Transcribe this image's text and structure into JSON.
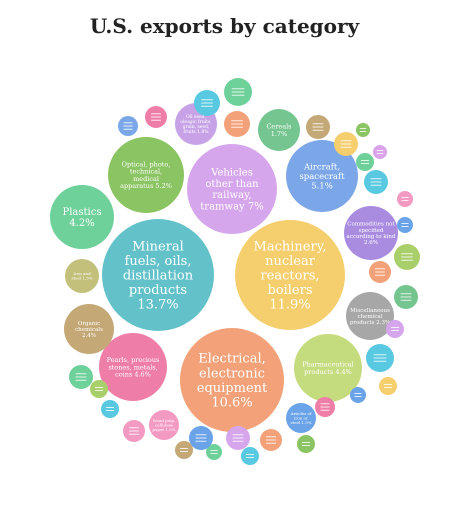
{
  "chart_data": {
    "type": "bubble",
    "title": "U.S. exports by category",
    "unit": "%",
    "bubbles": [
      {
        "id": "mineral",
        "label": [
          "Mineral",
          "fuels, oils,",
          "distillation",
          "products",
          "13.7%"
        ],
        "value": 13.7,
        "color": "#63c2c9"
      },
      {
        "id": "machinery",
        "label": [
          "Machinery,",
          "nuclear",
          "reactors,",
          "boilers",
          "11.9%"
        ],
        "value": 11.9,
        "color": "#f5ce6e"
      },
      {
        "id": "electrical",
        "label": [
          "Electrical,",
          "electronic",
          "equipment",
          "10.6%"
        ],
        "value": 10.6,
        "color": "#f3a178"
      },
      {
        "id": "vehicles",
        "label": [
          "Vehicles",
          "other than",
          "railway,",
          "tramway 7%"
        ],
        "value": 7.0,
        "color": "#d6a6ec"
      },
      {
        "id": "optical",
        "label": [
          "Optical, photo,",
          "technical,",
          "medical",
          "apparatus 5.2%"
        ],
        "value": 5.2,
        "color": "#8bc462"
      },
      {
        "id": "aircraft",
        "label": [
          "Aircraft,",
          "spacecraft",
          "5.1%"
        ],
        "value": 5.1,
        "color": "#7ba7e8"
      },
      {
        "id": "pearls",
        "label": [
          "Pearls, precious",
          "stones, metals,",
          "coins 4.6%"
        ],
        "value": 4.6,
        "color": "#ee7ea8"
      },
      {
        "id": "pharma",
        "label": [
          "Pharmaceutical",
          "products 4.4%"
        ],
        "value": 4.4,
        "color": "#c4db7e"
      },
      {
        "id": "plastics",
        "label": [
          "Plastics",
          "4.2%"
        ],
        "value": 4.2,
        "color": "#6ed19a"
      },
      {
        "id": "commodities",
        "label": [
          "Commodities not",
          "specified",
          "according to kind",
          "2.6%"
        ],
        "value": 2.6,
        "color": "#a98ce0"
      },
      {
        "id": "organic",
        "label": [
          "Organic",
          "chemicals",
          "2.4%"
        ],
        "value": 2.4,
        "color": "#c4a876"
      },
      {
        "id": "misc",
        "label": [
          "Miscellaneous",
          "chemical",
          "products 2.3%"
        ],
        "value": 2.3,
        "color": "#a7a7a7"
      },
      {
        "id": "oilseeds",
        "label": [
          "Oil seed,",
          "oleagic fruits,",
          "grain, seed,",
          "fruits 1.8%"
        ],
        "value": 1.8,
        "color": "#c7a2e6"
      },
      {
        "id": "cereals",
        "label": [
          "Cereals",
          "1.7%"
        ],
        "value": 1.7,
        "color": "#74c58f"
      },
      {
        "id": "articles_steel",
        "label": [
          "Articles of",
          "iron or",
          "steel 1.5%"
        ],
        "value": 1.5,
        "color": "#6aa3e8"
      },
      {
        "id": "iron_steel",
        "label": [
          "Iron and",
          "steel 1.5%"
        ],
        "value": 1.5,
        "color": "#c2c07a"
      },
      {
        "id": "wood",
        "label": [
          "Wood pulp,",
          "cellulose",
          "paper 1.5%"
        ],
        "value": 1.5,
        "color": "#f29ac2"
      },
      {
        "id": "small1",
        "label": [],
        "value": 1.3,
        "color": "#f3a178"
      },
      {
        "id": "small2",
        "label": [],
        "value": 1.2,
        "color": "#6ed19a"
      },
      {
        "id": "small3",
        "label": [],
        "value": 1.2,
        "color": "#58c9e0"
      },
      {
        "id": "small4",
        "label": [],
        "value": 1.1,
        "color": "#7ba7e8"
      },
      {
        "id": "small5",
        "label": [],
        "value": 1.1,
        "color": "#ee7ea8"
      },
      {
        "id": "small6",
        "label": [],
        "value": 1.0,
        "color": "#f5ce6e"
      },
      {
        "id": "small7",
        "label": [],
        "value": 1.0,
        "color": "#c4a876"
      },
      {
        "id": "small8",
        "label": [],
        "value": 1.0,
        "color": "#8bc462"
      },
      {
        "id": "small9",
        "label": [],
        "value": 0.9,
        "color": "#d9a4ea"
      },
      {
        "id": "small10",
        "label": [],
        "value": 0.9,
        "color": "#6ed19a"
      },
      {
        "id": "small11",
        "label": [],
        "value": 0.8,
        "color": "#58c9e0"
      },
      {
        "id": "small12",
        "label": [],
        "value": 0.8,
        "color": "#f29ac2"
      },
      {
        "id": "small13",
        "label": [],
        "value": 0.8,
        "color": "#6aa3e8"
      },
      {
        "id": "small14",
        "label": [],
        "value": 0.8,
        "color": "#a8cf6a"
      },
      {
        "id": "small15",
        "label": [],
        "value": 0.7,
        "color": "#f3a178"
      },
      {
        "id": "small16",
        "label": [],
        "value": 0.7,
        "color": "#74c58f"
      },
      {
        "id": "small17",
        "label": [],
        "value": 0.7,
        "color": "#d6a6ec"
      },
      {
        "id": "small18",
        "label": [],
        "value": 0.6,
        "color": "#58c9e0"
      },
      {
        "id": "small19",
        "label": [],
        "value": 0.6,
        "color": "#f5ce6e"
      },
      {
        "id": "small20",
        "label": [],
        "value": 0.6,
        "color": "#6aa3e8"
      },
      {
        "id": "small21",
        "label": [],
        "value": 0.5,
        "color": "#ee7ea8"
      },
      {
        "id": "small22",
        "label": [],
        "value": 0.5,
        "color": "#8bc462"
      },
      {
        "id": "small23",
        "label": [],
        "value": 0.5,
        "color": "#f3a178"
      },
      {
        "id": "small24",
        "label": [],
        "value": 0.4,
        "color": "#58c9e0"
      },
      {
        "id": "small25",
        "label": [],
        "value": 0.4,
        "color": "#d6a6ec"
      },
      {
        "id": "small26",
        "label": [],
        "value": 0.4,
        "color": "#6ed19a"
      },
      {
        "id": "small27",
        "label": [],
        "value": 0.3,
        "color": "#6aa3e8"
      },
      {
        "id": "small28",
        "label": [],
        "value": 0.3,
        "color": "#c4a876"
      },
      {
        "id": "small29",
        "label": [],
        "value": 0.3,
        "color": "#f29ac2"
      },
      {
        "id": "small30",
        "label": [],
        "value": 0.2,
        "color": "#58c9e0"
      },
      {
        "id": "small31",
        "label": [],
        "value": 0.2,
        "color": "#a8cf6a"
      },
      {
        "id": "small32",
        "label": [],
        "value": 0.2,
        "color": "#6ed19a"
      }
    ]
  }
}
